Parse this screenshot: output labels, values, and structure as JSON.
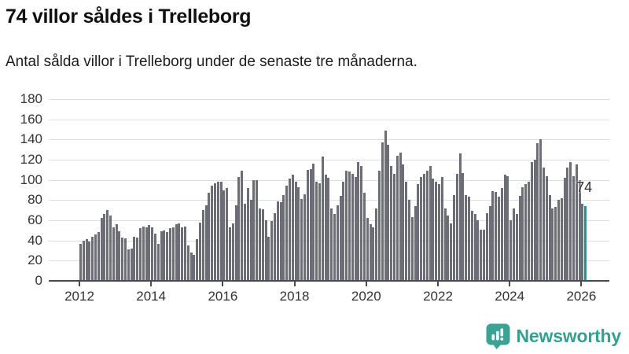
{
  "header": {
    "title": "74 villor såldes i Trelleborg",
    "subtitle": "Antal sålda villor i Trelleborg under de senaste tre månaderna."
  },
  "chart_data": {
    "type": "bar",
    "title": "74 villor såldes i Trelleborg",
    "subtitle": "Antal sålda villor i Trelleborg under de senaste tre månaderna.",
    "x_start": "2012-01",
    "x_end": "2026-02",
    "frequency": "monthly",
    "values": [
      37,
      40,
      41,
      39,
      44,
      46,
      48,
      62,
      66,
      70,
      65,
      53,
      56,
      49,
      43,
      42,
      31,
      32,
      44,
      43,
      52,
      54,
      53,
      55,
      53,
      47,
      37,
      49,
      50,
      48,
      52,
      53,
      56,
      57,
      53,
      54,
      35,
      28,
      26,
      41,
      58,
      70,
      75,
      87,
      94,
      97,
      98,
      98,
      90,
      92,
      53,
      57,
      75,
      103,
      109,
      76,
      92,
      80,
      100,
      100,
      72,
      71,
      60,
      44,
      59,
      67,
      79,
      78,
      85,
      94,
      101,
      105,
      98,
      93,
      81,
      86,
      110,
      111,
      116,
      98,
      97,
      123,
      105,
      102,
      72,
      66,
      75,
      84,
      98,
      109,
      108,
      106,
      103,
      118,
      114,
      87,
      62,
      56,
      53,
      72,
      109,
      137,
      149,
      135,
      114,
      106,
      124,
      127,
      115,
      98,
      80,
      63,
      74,
      96,
      103,
      106,
      109,
      114,
      101,
      98,
      96,
      103,
      72,
      65,
      57,
      85,
      106,
      126,
      107,
      85,
      83,
      69,
      66,
      60,
      51,
      51,
      67,
      74,
      89,
      88,
      83,
      92,
      105,
      104,
      60,
      72,
      66,
      84,
      93,
      96,
      98,
      118,
      120,
      136,
      140,
      112,
      104,
      85,
      72,
      73,
      80,
      82,
      102,
      112,
      118,
      104,
      115,
      100,
      76,
      74
    ],
    "last_value_label": "74",
    "highlight_last": true,
    "yticks": [
      0,
      20,
      40,
      60,
      80,
      100,
      120,
      140,
      160,
      180
    ],
    "ylim": [
      0,
      180
    ],
    "xticks": [
      2012,
      2014,
      2016,
      2018,
      2020,
      2022,
      2024,
      2026
    ],
    "grid": true,
    "legend": "none",
    "bar_color": "#6d6d77",
    "highlight_color": "#00a39b"
  },
  "footer": {
    "brand": "Newsworthy",
    "brand_text_color": "#35a08f",
    "brand_icon_color": "#3ba294"
  }
}
